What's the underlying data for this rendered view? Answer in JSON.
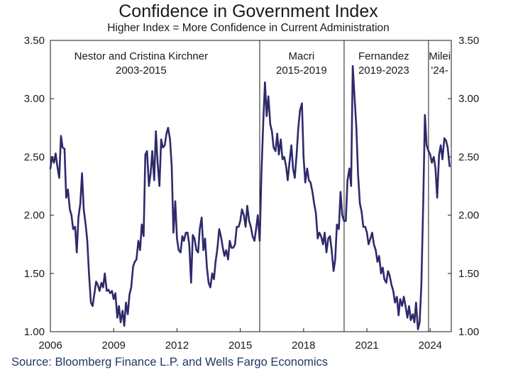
{
  "chart_data": {
    "type": "line",
    "title": "Confidence in Government Index",
    "subtitle": "Higher Index = More Confidence in Current Administration",
    "source": "Source: Bloomberg Finance L.P. and Wells Fargo Economics",
    "xlim": [
      2006.0,
      2025.0
    ],
    "ylim": [
      1.0,
      3.5
    ],
    "x_ticks": [
      2006,
      2009,
      2012,
      2015,
      2018,
      2021,
      2024
    ],
    "y_ticks": [
      "1.00",
      "1.50",
      "2.00",
      "2.50",
      "3.00",
      "3.50"
    ],
    "grid": false,
    "legend": "none",
    "line_color": "#2e2a6b",
    "dividers": [
      2015.92,
      2019.92,
      2023.92
    ],
    "eras": [
      {
        "line1": "Nestor and Cristina Kirchner",
        "line2": "2003-2015",
        "x_center": 2010.3
      },
      {
        "line1": "Macri",
        "line2": "2015-2019",
        "x_center": 2017.9
      },
      {
        "line1": "Fernandez",
        "line2": "2019-2023",
        "x_center": 2021.8
      },
      {
        "line1": "Milei",
        "line2": "'24-",
        "x_center": 2024.45
      }
    ],
    "series": [
      {
        "x": [
          2006.0,
          2006.08,
          2006.17,
          2006.25,
          2006.33,
          2006.42,
          2006.5,
          2006.58,
          2006.67,
          2006.75,
          2006.83,
          2006.92,
          2007.0,
          2007.08,
          2007.17,
          2007.25,
          2007.33,
          2007.42,
          2007.5,
          2007.58,
          2007.67,
          2007.75,
          2007.83,
          2007.92,
          2008.0,
          2008.08,
          2008.17,
          2008.25,
          2008.33,
          2008.42,
          2008.5,
          2008.58,
          2008.67,
          2008.75,
          2008.83,
          2008.92,
          2009.0,
          2009.08,
          2009.17,
          2009.25,
          2009.33,
          2009.42,
          2009.5,
          2009.58,
          2009.67,
          2009.75,
          2009.83,
          2009.92,
          2010.0,
          2010.08,
          2010.17,
          2010.25,
          2010.33,
          2010.42,
          2010.5,
          2010.58,
          2010.67,
          2010.75,
          2010.83,
          2010.92,
          2011.0,
          2011.08,
          2011.17,
          2011.25,
          2011.33,
          2011.42,
          2011.5,
          2011.58,
          2011.67,
          2011.75,
          2011.83,
          2011.92,
          2012.0,
          2012.08,
          2012.17,
          2012.25,
          2012.33,
          2012.42,
          2012.5,
          2012.58,
          2012.67,
          2012.75,
          2012.83,
          2012.92,
          2013.0,
          2013.08,
          2013.17,
          2013.25,
          2013.33,
          2013.42,
          2013.5,
          2013.58,
          2013.67,
          2013.75,
          2013.83,
          2013.92,
          2014.0,
          2014.08,
          2014.17,
          2014.25,
          2014.33,
          2014.42,
          2014.5,
          2014.58,
          2014.67,
          2014.75,
          2014.83,
          2014.92,
          2015.0,
          2015.08,
          2015.17,
          2015.25,
          2015.33,
          2015.42,
          2015.5,
          2015.58,
          2015.67,
          2015.75,
          2015.83,
          2015.92,
          2016.0,
          2016.08,
          2016.17,
          2016.25,
          2016.33,
          2016.42,
          2016.5,
          2016.58,
          2016.67,
          2016.75,
          2016.83,
          2016.92,
          2017.0,
          2017.08,
          2017.17,
          2017.25,
          2017.33,
          2017.42,
          2017.5,
          2017.58,
          2017.67,
          2017.75,
          2017.83,
          2017.92,
          2018.0,
          2018.08,
          2018.17,
          2018.25,
          2018.33,
          2018.42,
          2018.5,
          2018.58,
          2018.67,
          2018.75,
          2018.83,
          2018.92,
          2019.0,
          2019.08,
          2019.17,
          2019.25,
          2019.33,
          2019.42,
          2019.5,
          2019.58,
          2019.67,
          2019.75,
          2019.83,
          2019.92,
          2020.0,
          2020.08,
          2020.17,
          2020.25,
          2020.33,
          2020.42,
          2020.5,
          2020.58,
          2020.67,
          2020.75,
          2020.83,
          2020.92,
          2021.0,
          2021.08,
          2021.17,
          2021.25,
          2021.33,
          2021.42,
          2021.5,
          2021.58,
          2021.67,
          2021.75,
          2021.83,
          2021.92,
          2022.0,
          2022.08,
          2022.17,
          2022.25,
          2022.33,
          2022.42,
          2022.5,
          2022.58,
          2022.67,
          2022.75,
          2022.83,
          2022.92,
          2023.0,
          2023.08,
          2023.17,
          2023.25,
          2023.33,
          2023.42,
          2023.5,
          2023.58,
          2023.67,
          2023.75,
          2023.83,
          2023.92,
          2024.0,
          2024.08,
          2024.17,
          2024.25,
          2024.33,
          2024.42,
          2024.5,
          2024.58,
          2024.67,
          2024.75,
          2024.83,
          2024.92
        ],
        "y": [
          2.4,
          2.5,
          2.45,
          2.53,
          2.42,
          2.32,
          2.68,
          2.58,
          2.57,
          2.15,
          2.22,
          2.05,
          2.0,
          1.88,
          1.9,
          1.68,
          1.98,
          2.1,
          2.36,
          2.05,
          1.92,
          1.78,
          1.5,
          1.25,
          1.22,
          1.32,
          1.43,
          1.4,
          1.35,
          1.42,
          1.38,
          1.5,
          1.35,
          1.36,
          1.33,
          1.35,
          1.28,
          1.33,
          1.12,
          1.22,
          1.08,
          1.18,
          1.05,
          1.25,
          1.15,
          1.32,
          1.38,
          1.56,
          1.6,
          1.62,
          1.78,
          1.7,
          1.92,
          1.82,
          2.52,
          2.55,
          2.25,
          2.36,
          2.55,
          2.3,
          2.72,
          2.45,
          2.25,
          2.65,
          2.58,
          2.6,
          2.7,
          2.75,
          2.65,
          2.42,
          1.85,
          2.12,
          1.8,
          1.7,
          1.68,
          1.82,
          1.78,
          1.85,
          1.85,
          1.75,
          1.42,
          1.83,
          1.8,
          1.7,
          1.68,
          1.88,
          1.98,
          1.7,
          1.8,
          1.55,
          1.42,
          1.38,
          1.5,
          1.45,
          1.6,
          1.72,
          1.88,
          1.82,
          1.72,
          1.65,
          1.7,
          1.62,
          1.78,
          1.72,
          1.72,
          1.75,
          1.9,
          1.9,
          1.95,
          2.05,
          2.0,
          1.9,
          2.08,
          1.95,
          1.9,
          1.82,
          1.78,
          1.88,
          2.0,
          1.78,
          2.35,
          2.75,
          3.14,
          2.85,
          3.02,
          2.78,
          2.72,
          2.58,
          2.55,
          2.7,
          2.52,
          2.65,
          2.48,
          2.5,
          2.42,
          2.3,
          2.45,
          2.6,
          2.4,
          2.32,
          2.52,
          2.75,
          2.9,
          2.96,
          2.5,
          2.28,
          2.4,
          2.3,
          2.28,
          2.2,
          2.1,
          2.02,
          1.8,
          1.85,
          1.82,
          1.75,
          1.85,
          1.68,
          1.8,
          1.82,
          1.7,
          1.52,
          1.62,
          1.92,
          1.88,
          2.2,
          2.0,
          1.95,
          1.95,
          2.3,
          2.4,
          2.25,
          3.28,
          3.0,
          2.75,
          2.35,
          2.1,
          2.03,
          1.9,
          1.9,
          1.85,
          1.75,
          1.8,
          1.85,
          1.75,
          1.7,
          1.6,
          1.65,
          1.5,
          1.55,
          1.45,
          1.42,
          1.52,
          1.48,
          1.4,
          1.35,
          1.25,
          1.3,
          1.14,
          1.28,
          1.22,
          1.3,
          1.22,
          1.12,
          1.22,
          1.1,
          1.15,
          1.08,
          1.25,
          1.02,
          1.08,
          1.4,
          2.12,
          2.86,
          2.6,
          2.55,
          2.52,
          2.45,
          2.5,
          2.4,
          2.15,
          2.52,
          2.6,
          2.48,
          2.66,
          2.64,
          2.58,
          2.42
        ]
      }
    ]
  }
}
